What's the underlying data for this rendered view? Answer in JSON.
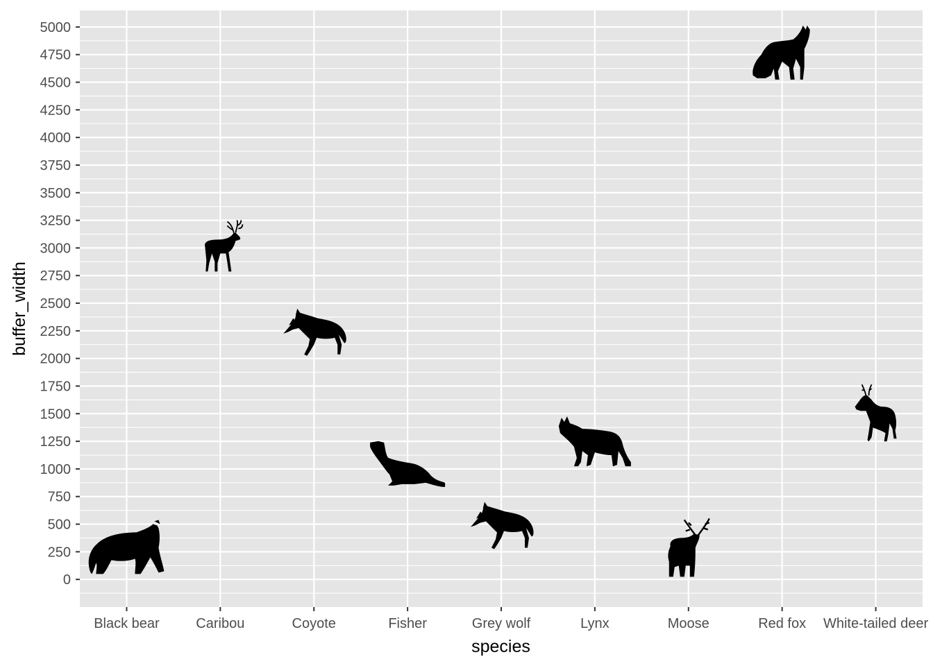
{
  "chart_data": {
    "type": "scatter",
    "marker": "animal-silhouette",
    "xlabel": "species",
    "ylabel": "buffer_width",
    "categories": [
      "Black bear",
      "Caribou",
      "Coyote",
      "Fisher",
      "Grey wolf",
      "Lynx",
      "Moose",
      "Red fox",
      "White-tailed deer"
    ],
    "values": [
      250,
      3000,
      2250,
      1000,
      500,
      1250,
      250,
      4750,
      1500
    ],
    "icons": [
      "bear-icon",
      "caribou-icon",
      "coyote-icon",
      "fisher-icon",
      "wolf-icon",
      "lynx-icon",
      "moose-icon",
      "fox-icon",
      "deer-icon"
    ],
    "yticks": [
      0,
      250,
      500,
      750,
      1000,
      1250,
      1500,
      1750,
      2000,
      2250,
      2500,
      2750,
      3000,
      3250,
      3500,
      3750,
      4000,
      4250,
      4500,
      4750,
      5000
    ],
    "ylim": [
      -250,
      5150
    ],
    "grid": true,
    "colors": {
      "panel": "#e5e5e5",
      "grid": "#ffffff",
      "marker": "#000000",
      "tick_text": "#4d4d4d"
    }
  }
}
